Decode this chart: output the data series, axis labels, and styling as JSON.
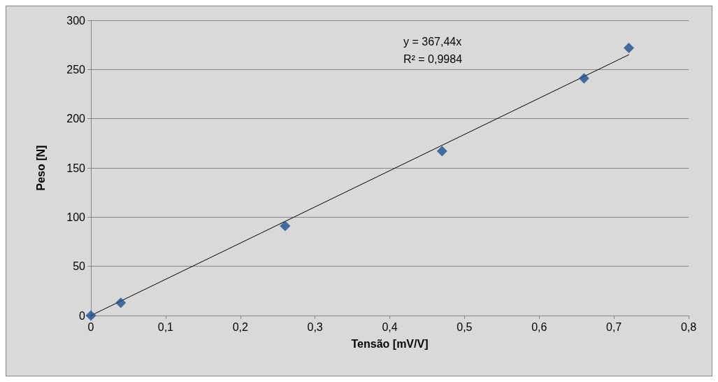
{
  "chart_data": {
    "type": "scatter",
    "xlabel": "Tensão [mV/V]",
    "ylabel": "Peso [N]",
    "series": [
      {
        "color": "#1f4e8c",
        "marker": "diamond",
        "x": [
          0,
          0.04,
          0.26,
          0.47,
          0.66,
          0.72
        ],
        "values": [
          0,
          13,
          91,
          167,
          241,
          272
        ]
      },
      {
        "type": "line",
        "color": "#000000",
        "marker": "none",
        "line_style": "solid",
        "x": [
          0,
          0.72
        ],
        "values": [
          0,
          265
        ]
      }
    ],
    "xlim": [
      0,
      0.8
    ],
    "xticks": [
      0,
      {
        "value": 0.1,
        "label": "0,1"
      },
      {
        "value": 0.2,
        "label": "0,2"
      },
      {
        "value": 0.3,
        "label": "0,3"
      },
      {
        "value": 0.4,
        "label": "0,4"
      },
      {
        "value": 0.5,
        "label": "0,5"
      },
      {
        "value": 0.6,
        "label": "0,6"
      },
      {
        "value": 0.7,
        "label": "0,7"
      },
      {
        "value": 0.8,
        "label": "0,8"
      }
    ],
    "ylim": [
      0,
      300
    ],
    "yticks": [
      0,
      50,
      100,
      150,
      200,
      250,
      300
    ],
    "grid": "y",
    "annotations": [
      "y = 367,44x",
      "R² = 0,9984"
    ]
  }
}
